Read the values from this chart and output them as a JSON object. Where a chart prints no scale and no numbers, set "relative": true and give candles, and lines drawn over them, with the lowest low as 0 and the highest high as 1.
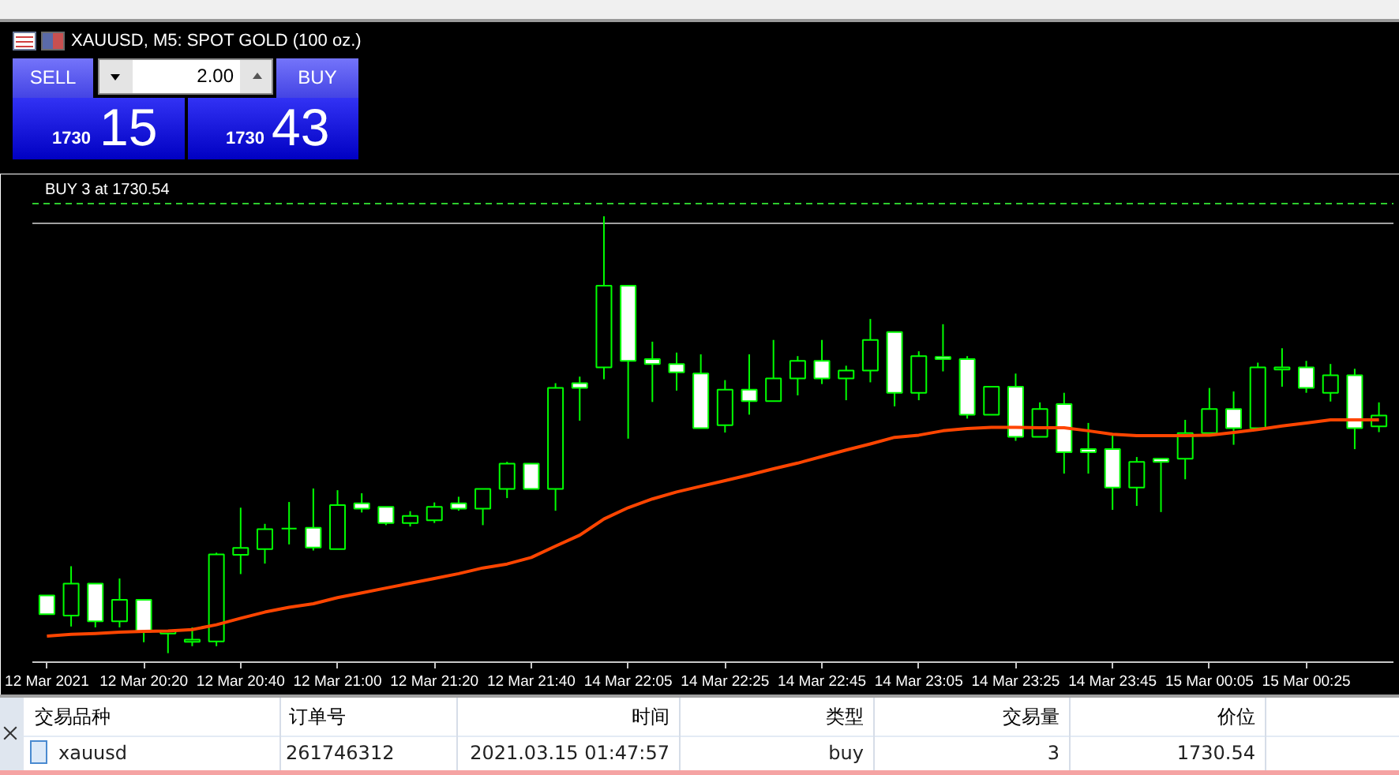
{
  "chart_data": {
    "type": "candlestick",
    "title": "XAUUSD, M5: SPOT GOLD (100 oz.)",
    "relative": true,
    "grid": false,
    "color": "#00ff00",
    "categories": [
      "12 Mar 2021",
      null,
      null,
      null,
      "12 Mar 20:20",
      null,
      null,
      null,
      "12 Mar 20:40",
      null,
      null,
      null,
      "12 Mar 21:00",
      null,
      null,
      null,
      "12 Mar 21:20",
      null,
      null,
      null,
      "12 Mar 21:40",
      null,
      null,
      null,
      "14 Mar 22:05",
      null,
      null,
      null,
      "14 Mar 22:25",
      null,
      null,
      null,
      "14 Mar 22:45",
      null,
      null,
      null,
      "14 Mar 23:05",
      null,
      null,
      null,
      "14 Mar 23:25",
      null,
      null,
      null,
      "14 Mar 23:45",
      null,
      null,
      null,
      "15 Mar 00:05",
      null,
      null,
      null,
      "15 Mar 00:25",
      null,
      null,
      null
    ],
    "ohlc": [
      [
        0.132,
        0.132,
        0.089,
        0.089
      ],
      [
        0.086,
        0.199,
        0.061,
        0.159
      ],
      [
        0.159,
        0.159,
        0.059,
        0.073
      ],
      [
        0.073,
        0.171,
        0.059,
        0.122
      ],
      [
        0.122,
        0.122,
        0.025,
        0.049
      ],
      [
        0.045,
        0.051,
        0,
        0.051
      ],
      [
        0.026,
        0.059,
        0.016,
        0.031
      ],
      [
        0.027,
        0.23,
        0.016,
        0.226
      ],
      [
        0.225,
        0.333,
        0.181,
        0.241
      ],
      [
        0.238,
        0.296,
        0.205,
        0.284
      ],
      [
        0.285,
        0.346,
        0.249,
        0.285
      ],
      [
        0.287,
        0.377,
        0.235,
        0.242
      ],
      [
        0.238,
        0.373,
        0.238,
        0.339
      ],
      [
        0.343,
        0.366,
        0.322,
        0.331
      ],
      [
        0.335,
        0.335,
        0.293,
        0.298
      ],
      [
        0.298,
        0.325,
        0.29,
        0.314
      ],
      [
        0.304,
        0.345,
        0.298,
        0.335
      ],
      [
        0.343,
        0.358,
        0.326,
        0.331
      ],
      [
        0.331,
        0.376,
        0.293,
        0.376
      ],
      [
        0.376,
        0.438,
        0.355,
        0.434
      ],
      [
        0.434,
        0.434,
        0.376,
        0.376
      ],
      [
        0.376,
        0.618,
        0.326,
        0.607
      ],
      [
        0.618,
        0.633,
        0.532,
        0.607
      ],
      [
        0.654,
        1,
        0.627,
        0.841
      ],
      [
        0.841,
        0.841,
        0.491,
        0.669
      ],
      [
        0.673,
        0.713,
        0.575,
        0.662
      ],
      [
        0.662,
        0.688,
        0.601,
        0.643
      ],
      [
        0.64,
        0.684,
        0.515,
        0.515
      ],
      [
        0.522,
        0.625,
        0.505,
        0.603
      ],
      [
        0.603,
        0.684,
        0.546,
        0.577
      ],
      [
        0.577,
        0.717,
        0.577,
        0.629
      ],
      [
        0.629,
        0.68,
        0.59,
        0.669
      ],
      [
        0.669,
        0.717,
        0.616,
        0.629
      ],
      [
        0.629,
        0.658,
        0.579,
        0.647
      ],
      [
        0.647,
        0.765,
        0.62,
        0.717
      ],
      [
        0.735,
        0.735,
        0.565,
        0.596
      ],
      [
        0.596,
        0.691,
        0.579,
        0.68
      ],
      [
        0.678,
        0.753,
        0.645,
        0.673
      ],
      [
        0.673,
        0.68,
        0.537,
        0.546
      ],
      [
        0.546,
        0.61,
        0.546,
        0.61
      ],
      [
        0.61,
        0.64,
        0.486,
        0.495
      ],
      [
        0.495,
        0.574,
        0.495,
        0.559
      ],
      [
        0.57,
        0.596,
        0.411,
        0.46
      ],
      [
        0.467,
        0.527,
        0.411,
        0.46
      ],
      [
        0.467,
        0.5,
        0.328,
        0.379
      ],
      [
        0.379,
        0.449,
        0.337,
        0.438
      ],
      [
        0.445,
        0.445,
        0.323,
        0.438
      ],
      [
        0.445,
        0.534,
        0.398,
        0.504
      ],
      [
        0.504,
        0.607,
        0.504,
        0.559
      ],
      [
        0.559,
        0.599,
        0.477,
        0.515
      ],
      [
        0.515,
        0.665,
        0.515,
        0.654
      ],
      [
        0.649,
        0.698,
        0.61,
        0.654
      ],
      [
        0.654,
        0.669,
        0.596,
        0.607
      ],
      [
        0.596,
        0.662,
        0.576,
        0.636
      ],
      [
        0.636,
        0.651,
        0.467,
        0.515
      ],
      [
        0.519,
        0.574,
        0.506,
        0.544
      ]
    ],
    "colors": [
      "#ffffff",
      "#000000",
      "#ffffff",
      "#000000",
      "#ffffff",
      "#000000",
      "#000000",
      "#000000",
      "#000000",
      "#000000",
      "#00ff00",
      "#ffffff",
      "#000000",
      "#ffffff",
      "#ffffff",
      "#000000",
      "#000000",
      "#ffffff",
      "#000000",
      "#000000",
      "#ffffff",
      "#000000",
      "#ffffff",
      "#000000",
      "#ffffff",
      "#ffffff",
      "#ffffff",
      "#ffffff",
      "#000000",
      "#ffffff",
      "#000000",
      "#000000",
      "#ffffff",
      "#000000",
      "#000000",
      "#ffffff",
      "#000000",
      "#ffffff",
      "#ffffff",
      "#000000",
      "#ffffff",
      "#000000",
      "#ffffff",
      "#ffffff",
      "#ffffff",
      "#000000",
      "#ffffff",
      "#000000",
      "#000000",
      "#ffffff",
      "#000000",
      "#000000",
      "#ffffff",
      "#000000",
      "#ffffff",
      "#000000"
    ],
    "series": [
      {
        "type": "line",
        "color": "#ff4500",
        "values": [
          0.039,
          0.043,
          0.045,
          0.048,
          0.05,
          0.051,
          0.054,
          0.065,
          0.08,
          0.094,
          0.105,
          0.113,
          0.127,
          0.138,
          0.149,
          0.16,
          0.171,
          0.182,
          0.195,
          0.204,
          0.219,
          0.245,
          0.27,
          0.307,
          0.333,
          0.353,
          0.369,
          0.382,
          0.395,
          0.408,
          0.422,
          0.435,
          0.45,
          0.465,
          0.479,
          0.494,
          0.499,
          0.509,
          0.514,
          0.517,
          0.517,
          0.516,
          0.516,
          0.509,
          0.501,
          0.498,
          0.498,
          0.498,
          0.499,
          0.505,
          0.512,
          0.52,
          0.527,
          0.534,
          0.534,
          0.534
        ]
      }
    ],
    "ref_lines": [
      {
        "axis": "y",
        "value": 1.029,
        "label": "BUY 3 at 1730.54",
        "color": "#2ecc2e",
        "line_style": "dashed"
      },
      {
        "axis": "y",
        "value": 0.984,
        "color": "#a0a0a0",
        "line_style": "solid"
      }
    ],
    "annotations": [
      "SELL",
      "2.00",
      "BUY",
      "1730",
      "15",
      "1730",
      "43",
      "交易品种",
      "订单号",
      "时间",
      "类型",
      "交易量",
      "价位",
      "xauusd",
      "261746312",
      "2021.03.15 01:47:57",
      "buy",
      "3",
      "1730.54"
    ]
  }
}
